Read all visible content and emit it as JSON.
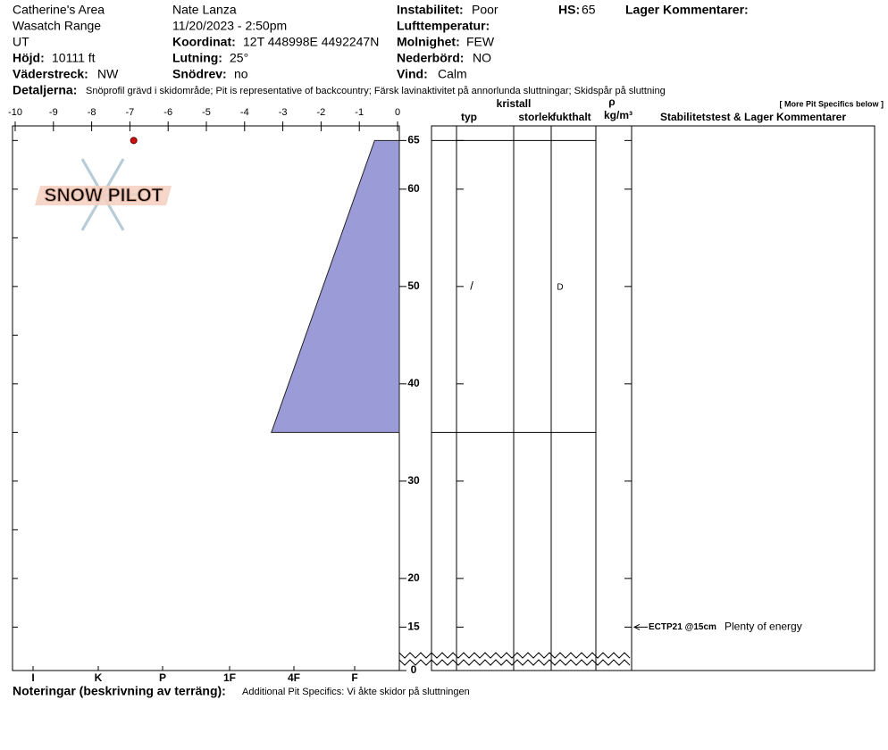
{
  "header": {
    "area": "Catherine's Area",
    "range": "Wasatch Range",
    "state": "UT",
    "observer": "Nate Lanza",
    "datetime": "11/20/2023 - 2:50pm",
    "fields": [
      {
        "label": "Höjd:",
        "value": "10111 ft"
      },
      {
        "label": "Väderstreck:",
        "value": "NW"
      },
      {
        "label": "Koordinat:",
        "value": "12T 448998E 4492247N"
      },
      {
        "label": "Lutning:",
        "value": "25°"
      },
      {
        "label": "Snödrev:",
        "value": "no"
      },
      {
        "label": "Instabilitet:",
        "value": "Poor"
      },
      {
        "label": "Lufttemperatur:"
      },
      {
        "label": "Molnighet:",
        "value": "FEW"
      },
      {
        "label": "Nederbörd:",
        "value": "NO"
      },
      {
        "label": "Vind:",
        "value": "Calm"
      },
      {
        "label": "HS:",
        "value": "65"
      },
      {
        "label": "Lager Kommentarer:"
      },
      {
        "label": "Detaljerna:",
        "value": "Snöprofil grävd i skidområde;  Pit is representative of backcountry;  Färsk lavinaktivitet på annorlunda sluttningar;  Skidspår på sluttning"
      }
    ],
    "link": "[ More Pit Specifics below ]",
    "logo": "SNOW PILOT"
  },
  "notes": {
    "label": "Noteringar (beskrivning av terräng):",
    "value": "Additional Pit Specifics: Vi åkte skidor på sluttningen"
  },
  "chart_data": {
    "type": "snow_profile",
    "xlim": [
      -10,
      0
    ],
    "xticks": [
      -10,
      -9,
      -8,
      -7,
      -6,
      -5,
      -4,
      -3,
      -2,
      -1,
      0
    ],
    "ylim": [
      0,
      66.5
    ],
    "yticks": [
      0,
      15,
      20,
      30,
      40,
      50,
      60,
      65
    ],
    "minor_yticks": [
      15,
      20,
      25,
      30,
      35,
      40,
      45,
      50,
      55,
      60,
      65
    ],
    "hardness_labels": [
      "I",
      "K",
      "P",
      "1F",
      "4F",
      "F"
    ],
    "color": "#9b9bd8",
    "temp_color": "#cc1111",
    "layers": [
      {
        "top": 65,
        "bottom": 35,
        "hardness_top": -0.6,
        "hardness_bottom": -3.3,
        "grain_type": "/",
        "moisture": "D"
      }
    ],
    "temperatures": [
      {
        "height": 65,
        "temp": -6.9
      }
    ],
    "stability_tests": [
      {
        "height": 15,
        "label": "ECTP21 @15cm",
        "comment": "Plenty of energy"
      }
    ],
    "table_headers": [
      "typ",
      "kristall",
      "storlek",
      "fukthalt",
      "ρ",
      "kg/m³",
      "Stabilitetstest & Lager Kommentarer"
    ]
  }
}
